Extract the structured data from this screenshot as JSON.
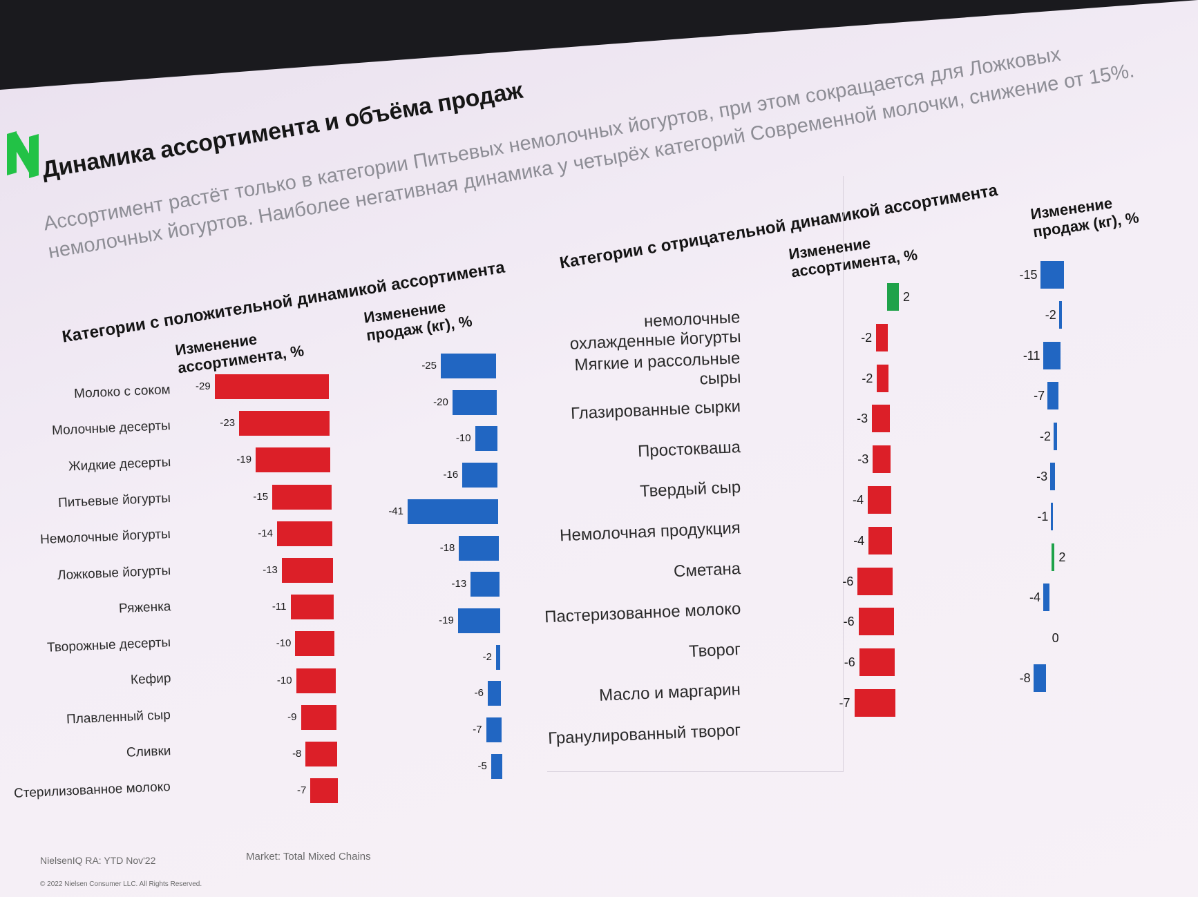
{
  "title": "Динамика ассортимента и объёма продаж",
  "subtitle": "Ассортимент растёт только в категории Питьевых немолочных йогуртов, при этом сокращается для Ложковых немолочных йогуртов. Наиболее негативная динамика у четырёх категорий Современной молочки, снижение от 15%.",
  "colors": {
    "red": "#dc1f28",
    "blue": "#2166c2",
    "green": "#1fa24a",
    "logo": "#22c246"
  },
  "logo_icon": "brand-logo-icon",
  "footer": {
    "source": "NielsenIQ RA: YTD Nov'22",
    "market": "Market: Total Mixed Chains",
    "copyright": "© 2022 Nielsen Consumer LLC. All Rights Reserved."
  },
  "chart_data": [
    {
      "type": "bar",
      "title": "Категории с положительной динамикой ассортимента",
      "categories": [
        "Молоко с соком",
        "Молочные десерты",
        "Жидкие десерты",
        "Питьевые йогурты",
        "Немолочные йогурты",
        "Ложковые йогурты",
        "Ряженка",
        "Творожные десерты",
        "Кефир",
        "Плавленный сыр",
        "Сливки",
        "Стерилизованное молоко"
      ],
      "series": [
        {
          "name": "Изменение\nассортимента, %",
          "values": [
            -29,
            -23,
            -19,
            -15,
            -14,
            -13,
            -11,
            -10,
            -10,
            -9,
            -8,
            -7
          ]
        },
        {
          "name": "Изменение\nпродаж (кг), %",
          "values": [
            -25,
            -20,
            -10,
            -16,
            -41,
            -18,
            -13,
            -19,
            -2,
            -6,
            -7,
            -5
          ]
        }
      ]
    },
    {
      "type": "bar",
      "title": "Категории с отрицательной динамикой ассортимента",
      "categories": [
        "немолочные\nохлажденные йогурты",
        "Мягкие и рассольные\nсыры",
        "Глазированные сырки",
        "Простокваша",
        "Твердый сыр",
        "Немолочная продукция",
        "Сметана",
        "Пастеризованное молоко",
        "Творог",
        "Масло и маргарин",
        "Гранулированный творог"
      ],
      "series": [
        {
          "name": "Изменение\nассортимента, %",
          "values": [
            2,
            -2,
            -2,
            -3,
            -3,
            -4,
            -4,
            -6,
            -6,
            -6,
            -7
          ]
        },
        {
          "name": "Изменение\nпродаж (кг), %",
          "values": [
            -15,
            -2,
            -11,
            -7,
            -2,
            -3,
            -1,
            2,
            -4,
            0,
            -8
          ]
        }
      ]
    }
  ]
}
